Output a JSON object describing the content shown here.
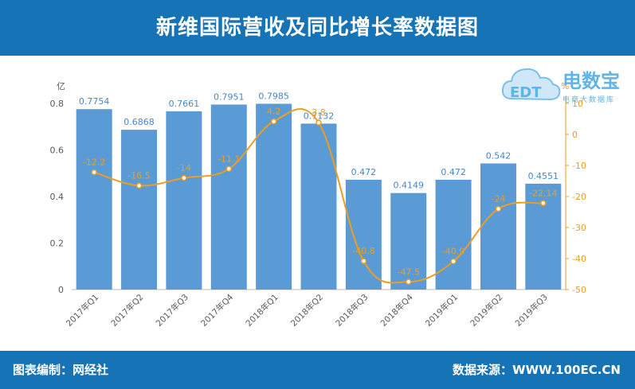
{
  "header": {
    "title": "新维国际营收及同比增长率数据图"
  },
  "footer": {
    "credit": "图表编制：网经社",
    "source": "数据来源：WWW.100EC.CN"
  },
  "logo": {
    "brand": "电数宝",
    "sub": "电商大数据库",
    "mark": "EDT"
  },
  "colors": {
    "header_bg": "#1674b6",
    "bar": "#5b9bd5",
    "line": "#ed9d1f",
    "bar_label": "#4a86c6",
    "line_label": "#ed9d1f"
  },
  "chart_data": {
    "type": "bar",
    "categories": [
      "2017年Q1",
      "2017年Q2",
      "2017年Q3",
      "2017年Q4",
      "2018年Q1",
      "2018年Q2",
      "2018年Q3",
      "2018年Q4",
      "2019年Q1",
      "2019年Q2",
      "2019年Q3"
    ],
    "series": [
      {
        "type": "bar",
        "axis": "left",
        "values": [
          0.7754,
          0.6868,
          0.7661,
          0.7951,
          0.7985,
          0.7132,
          0.472,
          0.4149,
          0.472,
          0.542,
          0.4551
        ],
        "labels": [
          "0.7754",
          "0.6868",
          "0.7661",
          "0.7951",
          "0.7985",
          "0.7132",
          "0.472",
          "0.4149",
          "0.472",
          "0.542",
          "0.4551"
        ]
      },
      {
        "type": "line",
        "axis": "right",
        "values": [
          -12.2,
          -16.5,
          -14,
          -11.1,
          4.2,
          3.8,
          -40.8,
          -47.5,
          -40.9,
          -24,
          -22.14
        ],
        "labels": [
          "-12.2",
          "-16.5",
          "-14",
          "-11.1",
          "4.2",
          "3.8",
          "-40.8",
          "-47.5",
          "-40.9",
          "-24",
          "-22.14"
        ]
      }
    ],
    "y_left": {
      "unit": "亿",
      "ylim": [
        0,
        0.8
      ],
      "ticks": [
        "0",
        "0.2",
        "0.4",
        "0.6",
        "0.8"
      ],
      "tick_values": [
        0,
        0.2,
        0.4,
        0.6,
        0.8
      ]
    },
    "y_right": {
      "unit": "%",
      "ylim": [
        -50,
        10
      ],
      "ticks": [
        "-50",
        "-40",
        "-30",
        "-20",
        "-10",
        "0",
        "10"
      ],
      "tick_values": [
        -50,
        -40,
        -30,
        -20,
        -10,
        0,
        10
      ]
    },
    "grid": false,
    "legend": "none"
  }
}
